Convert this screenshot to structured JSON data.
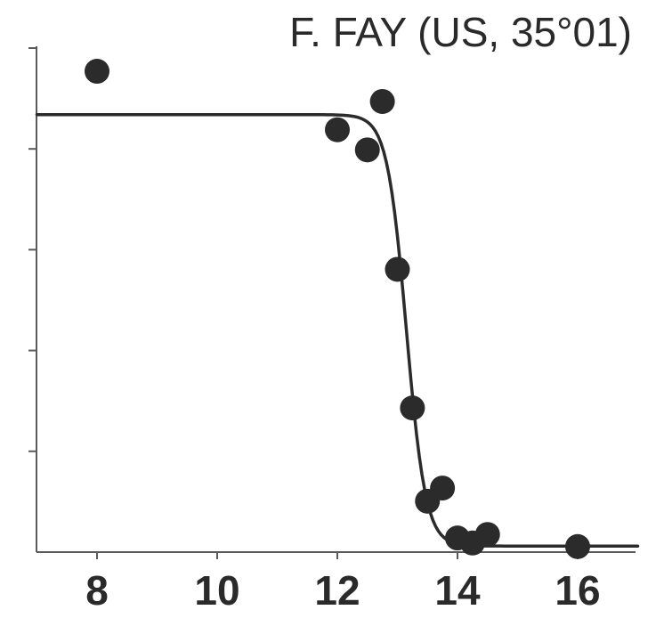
{
  "chart_data": {
    "type": "scatter",
    "title": "F. FAY (US, 35°01)",
    "xlabel": "",
    "ylabel": "",
    "xlim": [
      7,
      17
    ],
    "ylim": [
      0,
      1
    ],
    "x_ticks": [
      8,
      10,
      12,
      14,
      16
    ],
    "y_tick_values": [
      0.2,
      0.4,
      0.6,
      0.8,
      1.0
    ],
    "y_tick_labels_shown": false,
    "grid": false,
    "legend": "none",
    "colors": {
      "points": "#2b2b2b",
      "fit_line": "#2b2b2b",
      "axes": "#5a5a5a",
      "text": "#2a2a2a"
    },
    "series": [
      {
        "kind": "points",
        "points": [
          {
            "x": 8.0,
            "y": 0.954
          },
          {
            "x": 12.0,
            "y": 0.838
          },
          {
            "x": 12.5,
            "y": 0.798
          },
          {
            "x": 12.75,
            "y": 0.894
          },
          {
            "x": 13.0,
            "y": 0.561
          },
          {
            "x": 13.25,
            "y": 0.286
          },
          {
            "x": 13.5,
            "y": 0.101
          },
          {
            "x": 13.75,
            "y": 0.127
          },
          {
            "x": 14.0,
            "y": 0.028
          },
          {
            "x": 14.25,
            "y": 0.018
          },
          {
            "x": 14.5,
            "y": 0.035
          },
          {
            "x": 16.0,
            "y": 0.011
          }
        ]
      },
      {
        "kind": "fit",
        "plateau_high": 0.868,
        "plateau_low": 0.012,
        "midpoint": 13.15,
        "steepness": 0.16,
        "x_start": 7.0,
        "x_end": 17.0
      }
    ]
  }
}
